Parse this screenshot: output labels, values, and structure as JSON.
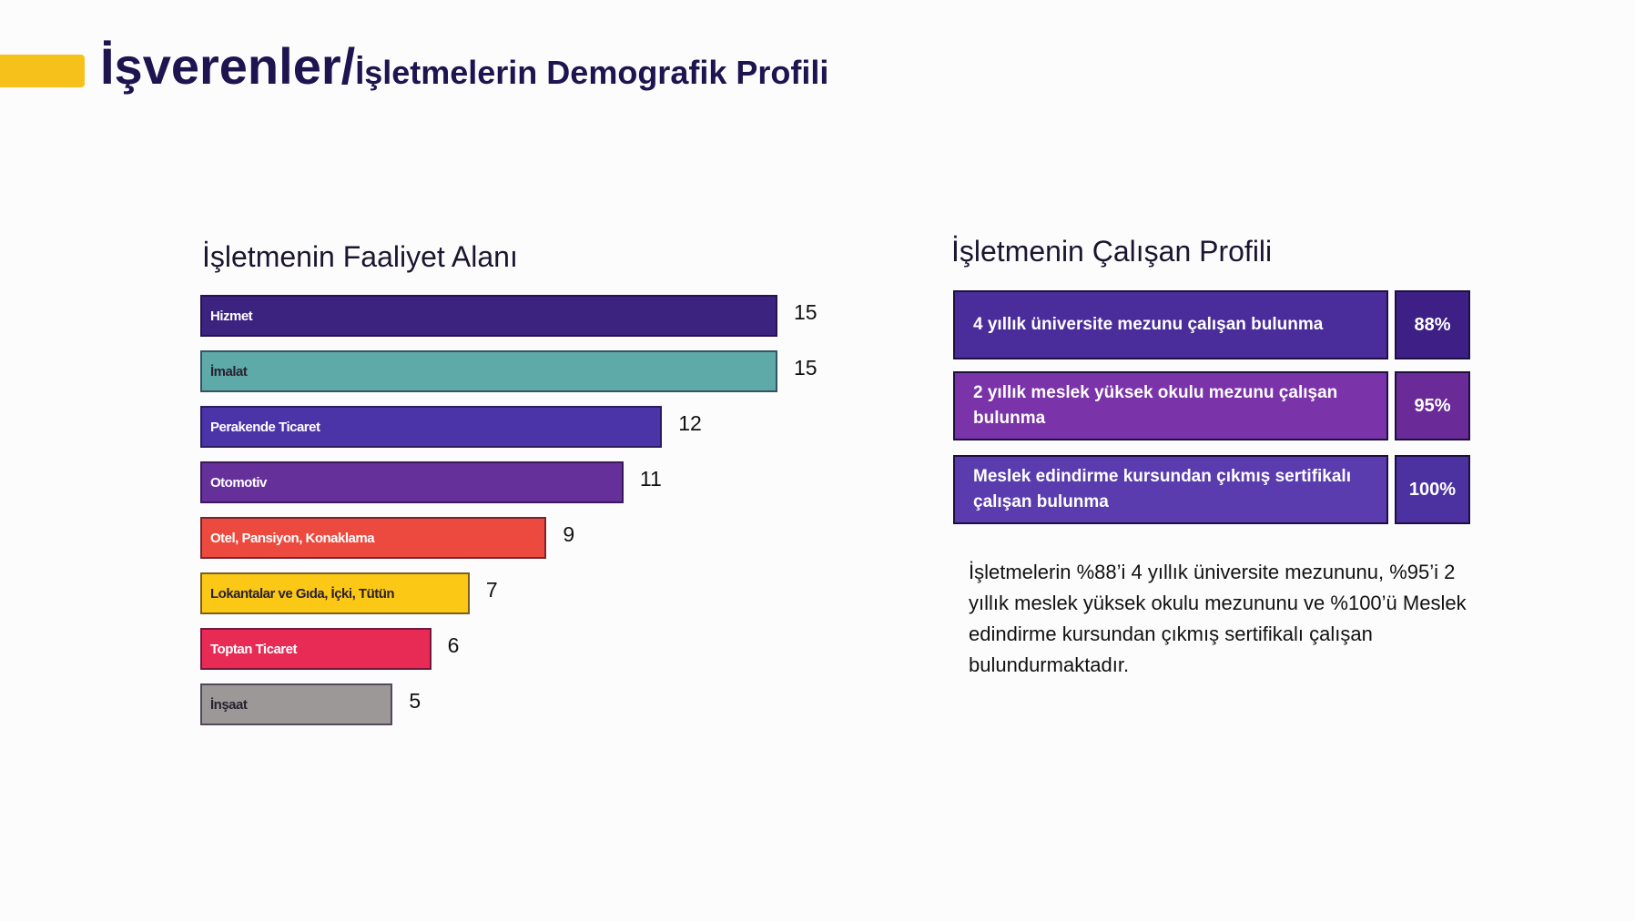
{
  "header": {
    "title_main": "İşverenler/",
    "title_sub": "İşletmelerin Demografik Profili",
    "accent_color": "#f6c11a"
  },
  "chart_data": {
    "type": "bar",
    "orientation": "horizontal",
    "title": "İşletmenin Faaliyet Alanı",
    "categories": [
      "Hizmet",
      "İmalat",
      "Perakende Ticaret",
      "Otomotiv",
      "Otel, Pansiyon, Konaklama",
      "Lokantalar ve Gıda, İçki, Tütün",
      "Toptan Ticaret",
      "İnşaat"
    ],
    "values": [
      15,
      15,
      12,
      11,
      9,
      7,
      6,
      5
    ],
    "colors": [
      "#3c2380",
      "#5eaaa8",
      "#4b33a8",
      "#66309a",
      "#ec4a3e",
      "#fbc816",
      "#e72b55",
      "#9c9898"
    ],
    "xlim": [
      0,
      15
    ],
    "xlabel": "",
    "ylabel": ""
  },
  "profile": {
    "title": "İşletmenin Çalışan Profili",
    "rows": [
      {
        "label": "4 yıllık üniversite mezunu çalışan bulunma",
        "pct": "88%",
        "color": "#4a2c9a",
        "pct_color": "#3e1f86"
      },
      {
        "label": "2 yıllık meslek yüksek okulu mezunu çalışan bulunma",
        "pct": "95%",
        "color": "#7a33a8",
        "pct_color": "#6a2a98"
      },
      {
        "label": "Meslek edindirme kursundan çıkmış sertifikalı çalışan bulunma",
        "pct": "100%",
        "color": "#5a3cae",
        "pct_color": "#4c32a0"
      }
    ],
    "summary": "İşletmelerin %88’i 4 yıllık üniversite mezununu, %95’i 2 yıllık meslek yüksek okulu mezununu ve %100’ü Meslek edindirme kursundan çıkmış sertifikalı çalışan bulundurmaktadır."
  }
}
